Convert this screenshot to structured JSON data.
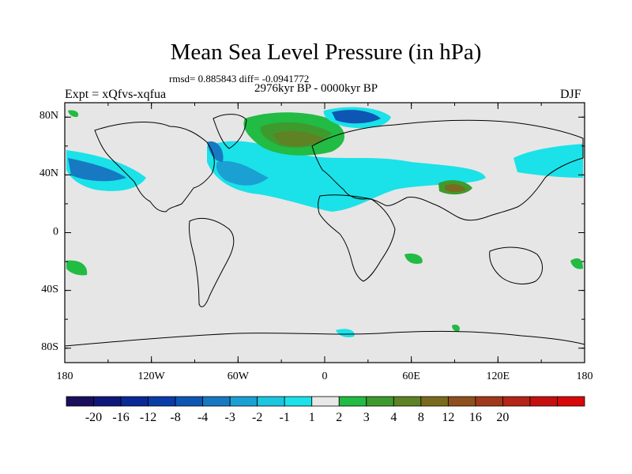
{
  "header": {
    "title": "Mean Sea Level Pressure (in hPa)",
    "stats": "rmsd= 0.885843 diff= -0.0941772",
    "experiment": "Expt = xQfvs-xqfua",
    "period": "2976kyr BP - 0000kyr BP",
    "season": "DJF"
  },
  "axes": {
    "lat_labels": [
      "80N",
      "40N",
      "0",
      "40S",
      "80S"
    ],
    "lat_values": [
      80,
      40,
      0,
      -40,
      -80
    ],
    "lon_labels": [
      "180",
      "120W",
      "60W",
      "0",
      "60E",
      "120E",
      "180"
    ],
    "lon_values": [
      -180,
      -120,
      -60,
      0,
      60,
      120,
      180
    ]
  },
  "colorbar": {
    "labels": [
      "-20",
      "-16",
      "-12",
      "-8",
      "-4",
      "-3",
      "-2",
      "-1",
      "1",
      "2",
      "3",
      "4",
      "8",
      "12",
      "16",
      "20"
    ],
    "colors": [
      "#1a0f5c",
      "#10177a",
      "#0a2896",
      "#0a3ca8",
      "#0e56b4",
      "#1779c2",
      "#1aa0d2",
      "#1ac6e0",
      "#1ae2e8",
      "#e8e8e8",
      "#22bb44",
      "#3f9a2e",
      "#5e8224",
      "#7a6a1e",
      "#8e501c",
      "#a0381c",
      "#b42418",
      "#c61010",
      "#d80808"
    ]
  },
  "map": {
    "background_color": "#e6e6e6",
    "frame_color": "#000000"
  }
}
